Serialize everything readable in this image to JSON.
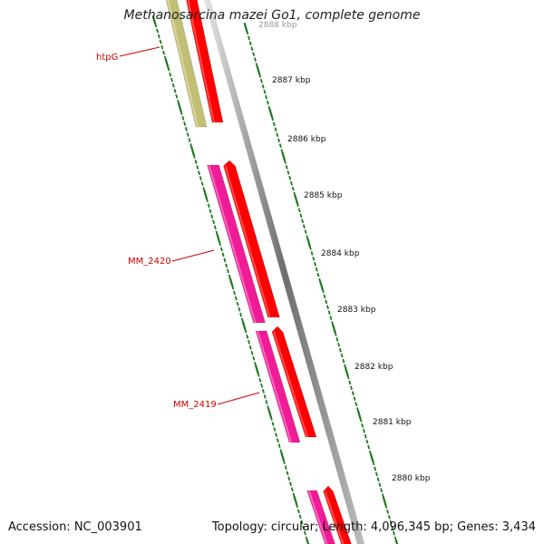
{
  "title": "Methanosarcina mazei Go1, complete genome",
  "footer": {
    "accession": "Accession: NC_003901",
    "stats": "Topology: circular; Length: 4,096,345 bp; Genes: 3,434"
  },
  "genes": [
    {
      "label": "htpG",
      "color": "#c2bf74"
    },
    {
      "label": "MM_2420",
      "color": "#f01b96"
    },
    {
      "label": "MM_2419",
      "color": "#f01b96"
    },
    {
      "label": "",
      "color": "#f01b96"
    }
  ],
  "strand_color": "#ff0000",
  "tick_color": "#1e7a1e",
  "label_color": "#cc0000",
  "scale_labels": [
    "2888 kbp",
    "2887 kbp",
    "2886 kbp",
    "2885 kbp",
    "2884 kbp",
    "2883 kbp",
    "2882 kbp",
    "2881 kbp",
    "2880 kbp"
  ]
}
